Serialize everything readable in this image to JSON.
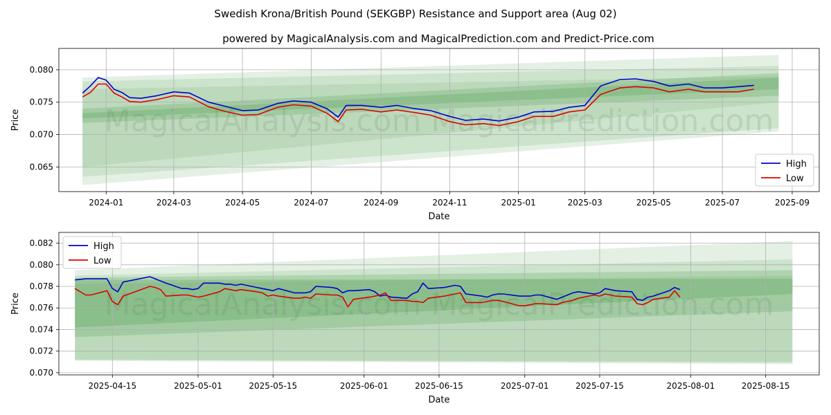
{
  "chart_data": [
    {
      "type": "line",
      "title": "Swedish Krona/British Pound (SEKGBP) Resistance and Support area (Aug 02)",
      "subtitle": "powered by MagicalAnalysis.com and MagicalPrediction.com and Predict-Price.com",
      "xlabel": "Date",
      "ylabel": "Price",
      "xlim": [
        "2023-11-20",
        "2025-09-25"
      ],
      "ylim": [
        0.0612,
        0.0833
      ],
      "x_ticks": [
        "2024-01",
        "2024-03",
        "2024-05",
        "2024-07",
        "2024-09",
        "2024-11",
        "2025-01",
        "2025-03",
        "2025-05",
        "2025-07",
        "2025-09"
      ],
      "x_tick_dates": [
        "2024-01-01",
        "2024-03-01",
        "2024-05-01",
        "2024-07-01",
        "2024-09-01",
        "2024-11-01",
        "2025-01-01",
        "2025-03-01",
        "2025-05-01",
        "2025-07-01",
        "2025-09-01"
      ],
      "y_ticks": [
        "0.065",
        "0.070",
        "0.075",
        "0.080"
      ],
      "y_tick_values": [
        0.065,
        0.07,
        0.075,
        0.08
      ],
      "grid": true,
      "legend_position": "lower-right",
      "watermark": "MagicalAnalysis.com    MagicalPrediction.com",
      "x": [
        "2023-12-11",
        "2023-12-18",
        "2023-12-25",
        "2024-01-01",
        "2024-01-08",
        "2024-01-15",
        "2024-01-22",
        "2024-02-01",
        "2024-02-15",
        "2024-03-01",
        "2024-03-15",
        "2024-04-01",
        "2024-04-15",
        "2024-05-01",
        "2024-05-15",
        "2024-06-01",
        "2024-06-15",
        "2024-07-01",
        "2024-07-15",
        "2024-07-25",
        "2024-08-01",
        "2024-08-15",
        "2024-09-01",
        "2024-09-15",
        "2024-10-01",
        "2024-10-15",
        "2024-11-01",
        "2024-11-15",
        "2024-12-01",
        "2024-12-15",
        "2025-01-01",
        "2025-01-15",
        "2025-02-01",
        "2025-02-15",
        "2025-03-01",
        "2025-03-15",
        "2025-04-01",
        "2025-04-15",
        "2025-05-01",
        "2025-05-15",
        "2025-06-01",
        "2025-06-15",
        "2025-07-01",
        "2025-07-15",
        "2025-07-29"
      ],
      "series": [
        {
          "name": "High",
          "color": "#0000cc",
          "values": [
            0.0764,
            0.0775,
            0.0788,
            0.0784,
            0.077,
            0.0765,
            0.0757,
            0.0756,
            0.076,
            0.0766,
            0.0764,
            0.075,
            0.0744,
            0.0737,
            0.0738,
            0.0748,
            0.0752,
            0.075,
            0.074,
            0.0727,
            0.0745,
            0.0745,
            0.0742,
            0.0745,
            0.074,
            0.0737,
            0.0728,
            0.0722,
            0.0724,
            0.0721,
            0.0727,
            0.0735,
            0.0736,
            0.0742,
            0.0745,
            0.0775,
            0.0785,
            0.0786,
            0.0782,
            0.0775,
            0.0778,
            0.0772,
            0.0772,
            0.0774,
            0.0776
          ]
        },
        {
          "name": "Low",
          "color": "#dd0000",
          "values": [
            0.0758,
            0.0765,
            0.0778,
            0.0778,
            0.0764,
            0.0758,
            0.0751,
            0.075,
            0.0754,
            0.076,
            0.0758,
            0.0743,
            0.0736,
            0.073,
            0.0731,
            0.0742,
            0.0746,
            0.0744,
            0.0733,
            0.072,
            0.0738,
            0.0739,
            0.0735,
            0.0738,
            0.0734,
            0.073,
            0.072,
            0.0715,
            0.0717,
            0.0714,
            0.072,
            0.0728,
            0.0728,
            0.0735,
            0.0738,
            0.0762,
            0.0772,
            0.0774,
            0.0772,
            0.0766,
            0.077,
            0.0766,
            0.0766,
            0.0766,
            0.077
          ]
        }
      ],
      "bands": [
        {
          "x": [
            "2023-12-11",
            "2025-08-20"
          ],
          "upper": [
            0.0788,
            0.0823
          ],
          "lower": [
            0.0622,
            0.0705
          ],
          "color": "#2e8b2e",
          "opacity": 0.13
        },
        {
          "x": [
            "2023-12-11",
            "2025-08-20"
          ],
          "upper": [
            0.0782,
            0.0806
          ],
          "lower": [
            0.0635,
            0.071
          ],
          "color": "#2e8b2e",
          "opacity": 0.13
        },
        {
          "x": [
            "2023-12-11",
            "2025-08-20"
          ],
          "upper": [
            0.074,
            0.0795
          ],
          "lower": [
            0.0718,
            0.076
          ],
          "color": "#2e8b2e",
          "opacity": 0.18
        },
        {
          "x": [
            "2023-12-11",
            "2025-08-20"
          ],
          "upper": [
            0.0733,
            0.0788
          ],
          "lower": [
            0.0725,
            0.077
          ],
          "color": "#2e8b2e",
          "opacity": 0.18
        },
        {
          "x": [
            "2023-12-11",
            "2025-08-20"
          ],
          "upper": [
            0.077,
            0.079
          ],
          "lower": [
            0.065,
            0.075
          ],
          "color": "#2e8b2e",
          "opacity": 0.1
        }
      ]
    },
    {
      "type": "line",
      "title": "",
      "xlabel": "Date",
      "ylabel": "Price",
      "xlim": [
        "2025-04-05",
        "2025-08-25"
      ],
      "ylim": [
        0.0698,
        0.083
      ],
      "x_ticks": [
        "2025-04-15",
        "2025-05-01",
        "2025-05-15",
        "2025-06-01",
        "2025-06-15",
        "2025-07-01",
        "2025-07-15",
        "2025-08-01",
        "2025-08-15"
      ],
      "x_tick_dates": [
        "2025-04-15",
        "2025-05-01",
        "2025-05-15",
        "2025-06-01",
        "2025-06-15",
        "2025-07-01",
        "2025-07-15",
        "2025-08-01",
        "2025-08-15"
      ],
      "y_ticks": [
        "0.070",
        "0.072",
        "0.074",
        "0.076",
        "0.078",
        "0.080",
        "0.082"
      ],
      "y_tick_values": [
        0.07,
        0.072,
        0.074,
        0.076,
        0.078,
        0.08,
        0.082
      ],
      "grid": true,
      "legend_position": "upper-left",
      "watermark": "MagicalAnalysis.com    MagicalPrediction.com",
      "x": [
        "2025-04-08",
        "2025-04-10",
        "2025-04-11",
        "2025-04-14",
        "2025-04-15",
        "2025-04-16",
        "2025-04-17",
        "2025-04-22",
        "2025-04-23",
        "2025-04-24",
        "2025-04-25",
        "2025-04-28",
        "2025-04-29",
        "2025-04-30",
        "2025-05-01",
        "2025-05-02",
        "2025-05-05",
        "2025-05-06",
        "2025-05-07",
        "2025-05-08",
        "2025-05-09",
        "2025-05-12",
        "2025-05-13",
        "2025-05-14",
        "2025-05-15",
        "2025-05-16",
        "2025-05-19",
        "2025-05-20",
        "2025-05-21",
        "2025-05-22",
        "2025-05-23",
        "2025-05-26",
        "2025-05-27",
        "2025-05-28",
        "2025-05-29",
        "2025-05-30",
        "2025-06-02",
        "2025-06-03",
        "2025-06-04",
        "2025-06-05",
        "2025-06-06",
        "2025-06-09",
        "2025-06-10",
        "2025-06-11",
        "2025-06-12",
        "2025-06-13",
        "2025-06-16",
        "2025-06-17",
        "2025-06-18",
        "2025-06-19",
        "2025-06-20",
        "2025-06-23",
        "2025-06-24",
        "2025-06-25",
        "2025-06-26",
        "2025-06-27",
        "2025-06-30",
        "2025-07-01",
        "2025-07-02",
        "2025-07-03",
        "2025-07-04",
        "2025-07-07",
        "2025-07-08",
        "2025-07-09",
        "2025-07-10",
        "2025-07-11",
        "2025-07-14",
        "2025-07-15",
        "2025-07-16",
        "2025-07-17",
        "2025-07-18",
        "2025-07-21",
        "2025-07-22",
        "2025-07-23",
        "2025-07-24",
        "2025-07-25",
        "2025-07-28",
        "2025-07-29",
        "2025-07-30"
      ],
      "series": [
        {
          "name": "High",
          "color": "#0000cc",
          "values": [
            0.0786,
            0.0787,
            0.0787,
            0.0787,
            0.0778,
            0.0775,
            0.0784,
            0.0789,
            0.0787,
            0.0785,
            0.0783,
            0.0778,
            0.0778,
            0.0777,
            0.0778,
            0.0783,
            0.0783,
            0.0782,
            0.0782,
            0.0781,
            0.0782,
            0.0779,
            0.0778,
            0.0777,
            0.0776,
            0.0778,
            0.0774,
            0.0774,
            0.0774,
            0.0775,
            0.078,
            0.0779,
            0.0778,
            0.0774,
            0.0776,
            0.0776,
            0.0777,
            0.0775,
            0.0771,
            0.0772,
            0.077,
            0.0769,
            0.0773,
            0.0775,
            0.0783,
            0.0778,
            0.0779,
            0.078,
            0.0781,
            0.078,
            0.0773,
            0.0771,
            0.077,
            0.0772,
            0.0773,
            0.0773,
            0.0771,
            0.0771,
            0.0771,
            0.0772,
            0.0772,
            0.0768,
            0.077,
            0.0772,
            0.0774,
            0.0775,
            0.0773,
            0.0774,
            0.0778,
            0.0777,
            0.0776,
            0.0775,
            0.0768,
            0.0767,
            0.077,
            0.0771,
            0.0776,
            0.0779,
            0.0777
          ]
        },
        {
          "name": "Low",
          "color": "#dd0000",
          "values": [
            0.0778,
            0.0772,
            0.0772,
            0.0776,
            0.0766,
            0.0763,
            0.0771,
            0.078,
            0.0779,
            0.0777,
            0.0771,
            0.0772,
            0.0772,
            0.0771,
            0.077,
            0.0771,
            0.0775,
            0.0778,
            0.0777,
            0.0776,
            0.0777,
            0.0775,
            0.0774,
            0.0771,
            0.0772,
            0.0771,
            0.0769,
            0.0769,
            0.077,
            0.0769,
            0.0773,
            0.0772,
            0.0772,
            0.077,
            0.0761,
            0.0768,
            0.077,
            0.0771,
            0.0772,
            0.0774,
            0.0767,
            0.0767,
            0.0766,
            0.0766,
            0.0765,
            0.0769,
            0.0771,
            0.0772,
            0.0773,
            0.0774,
            0.0765,
            0.0765,
            0.0766,
            0.0767,
            0.0767,
            0.0766,
            0.0762,
            0.0762,
            0.0763,
            0.0764,
            0.0764,
            0.0763,
            0.0765,
            0.0766,
            0.0767,
            0.0769,
            0.0772,
            0.0771,
            0.0773,
            0.0772,
            0.0771,
            0.077,
            0.0764,
            0.0763,
            0.0765,
            0.0768,
            0.077,
            0.0776,
            0.077
          ]
        }
      ],
      "bands": [
        {
          "x": [
            "2025-04-08",
            "2025-08-20"
          ],
          "upper": [
            0.0795,
            0.0822
          ],
          "lower": [
            0.0711,
            0.0708
          ],
          "color": "#2e8b2e",
          "opacity": 0.13
        },
        {
          "x": [
            "2025-04-08",
            "2025-08-20"
          ],
          "upper": [
            0.079,
            0.0805
          ],
          "lower": [
            0.0712,
            0.071
          ],
          "color": "#2e8b2e",
          "opacity": 0.13
        },
        {
          "x": [
            "2025-04-08",
            "2025-08-20"
          ],
          "upper": [
            0.0788,
            0.0795
          ],
          "lower": [
            0.0733,
            0.0757
          ],
          "color": "#2e8b2e",
          "opacity": 0.18
        },
        {
          "x": [
            "2025-04-08",
            "2025-08-20"
          ],
          "upper": [
            0.0786,
            0.0787
          ],
          "lower": [
            0.0742,
            0.0773
          ],
          "color": "#2e8b2e",
          "opacity": 0.2
        },
        {
          "x": [
            "2025-04-08",
            "2025-08-20"
          ],
          "upper": [
            0.0782,
            0.079
          ],
          "lower": [
            0.0712,
            0.0709
          ],
          "color": "#2e8b2e",
          "opacity": 0.1
        }
      ]
    }
  ]
}
